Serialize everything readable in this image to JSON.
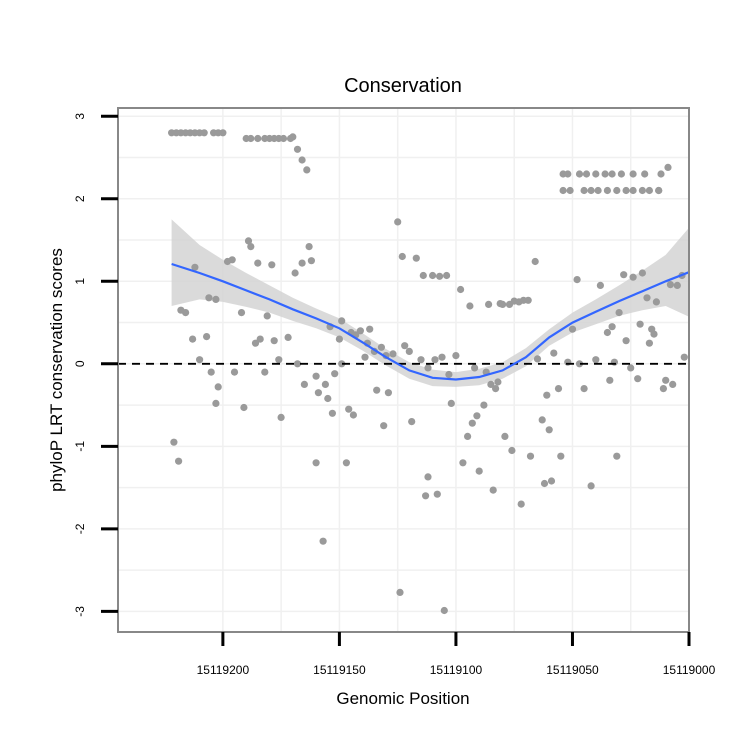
{
  "chart_data": {
    "type": "scatter",
    "title": "Conservation",
    "xlabel": "Genomic Position",
    "ylabel": "phyloP LRT conservation scores",
    "x_reversed": true,
    "xlim": [
      15119000,
      15119245
    ],
    "ylim": [
      -3.25,
      3.1
    ],
    "xticks": [
      15119200,
      15119150,
      15119100,
      15119050,
      15119000
    ],
    "yticks": [
      3,
      2,
      1,
      0,
      -1,
      -2,
      -3
    ],
    "reference_line": {
      "y": 0,
      "style": "dashed",
      "color": "#000000"
    },
    "point_color": "#9a9a9a",
    "smooth_color": "#3366ff",
    "band_color": "#d3d3d3",
    "grid": true,
    "background": "#ffffff",
    "panel_border": "#888888",
    "points": [
      [
        15119221,
        -0.95
      ],
      [
        15119219,
        -1.18
      ],
      [
        15119216,
        0.62
      ],
      [
        15119218,
        0.65
      ],
      [
        15119213,
        0.3
      ],
      [
        15119212,
        1.17
      ],
      [
        15119210,
        0.05
      ],
      [
        15119207,
        0.33
      ],
      [
        15119206,
        0.8
      ],
      [
        15119203,
        0.78
      ],
      [
        15119205,
        -0.1
      ],
      [
        15119203,
        -0.48
      ],
      [
        15119202,
        -0.28
      ],
      [
        15119198,
        1.24
      ],
      [
        15119196,
        1.26
      ],
      [
        15119195,
        -0.1
      ],
      [
        15119192,
        0.62
      ],
      [
        15119191,
        -0.53
      ],
      [
        15119189,
        1.49
      ],
      [
        15119188,
        1.42
      ],
      [
        15119186,
        0.25
      ],
      [
        15119185,
        1.22
      ],
      [
        15119184,
        0.3
      ],
      [
        15119182,
        -0.1
      ],
      [
        15119181,
        0.58
      ],
      [
        15119179,
        1.2
      ],
      [
        15119178,
        0.28
      ],
      [
        15119176,
        0.05
      ],
      [
        15119175,
        -0.65
      ],
      [
        15119172,
        0.32
      ],
      [
        15119169,
        1.1
      ],
      [
        15119168,
        0.0
      ],
      [
        15119165,
        -0.25
      ],
      [
        15119166,
        1.22
      ],
      [
        15119163,
        1.42
      ],
      [
        15119162,
        1.25
      ],
      [
        15119160,
        -1.2
      ],
      [
        15119160,
        -0.15
      ],
      [
        15119159,
        -0.35
      ],
      [
        15119157,
        -2.15
      ],
      [
        15119156,
        -0.25
      ],
      [
        15119155,
        -0.42
      ],
      [
        15119154,
        0.45
      ],
      [
        15119153,
        -0.6
      ],
      [
        15119152,
        -0.12
      ],
      [
        15119150,
        0.3
      ],
      [
        15119149,
        0.52
      ],
      [
        15119149,
        0.0
      ],
      [
        15119147,
        -1.2
      ],
      [
        15119146,
        -0.55
      ],
      [
        15119145,
        0.38
      ],
      [
        15119144,
        -0.62
      ],
      [
        15119143,
        0.35
      ],
      [
        15119141,
        0.4
      ],
      [
        15119139,
        0.08
      ],
      [
        15119138,
        0.25
      ],
      [
        15119137,
        0.42
      ],
      [
        15119135,
        0.15
      ],
      [
        15119134,
        -0.32
      ],
      [
        15119132,
        0.2
      ],
      [
        15119131,
        -0.75
      ],
      [
        15119130,
        0.1
      ],
      [
        15119129,
        -0.35
      ],
      [
        15119127,
        0.12
      ],
      [
        15119125,
        1.72
      ],
      [
        15119124,
        -2.77
      ],
      [
        15119123,
        1.3
      ],
      [
        15119122,
        0.22
      ],
      [
        15119120,
        0.15
      ],
      [
        15119119,
        -0.7
      ],
      [
        15119117,
        1.28
      ],
      [
        15119115,
        0.05
      ],
      [
        15119114,
        1.07
      ],
      [
        15119113,
        -1.6
      ],
      [
        15119112,
        -1.37
      ],
      [
        15119112,
        -0.05
      ],
      [
        15119110,
        1.07
      ],
      [
        15119109,
        0.05
      ],
      [
        15119108,
        -1.58
      ],
      [
        15119107,
        1.06
      ],
      [
        15119106,
        0.08
      ],
      [
        15119105,
        -2.99
      ],
      [
        15119104,
        1.07
      ],
      [
        15119103,
        -0.13
      ],
      [
        15119102,
        -0.48
      ],
      [
        15119100,
        0.1
      ],
      [
        15119098,
        0.9
      ],
      [
        15119097,
        -1.2
      ],
      [
        15119095,
        -0.88
      ],
      [
        15119094,
        0.7
      ],
      [
        15119093,
        -0.72
      ],
      [
        15119092,
        -0.05
      ],
      [
        15119091,
        -0.63
      ],
      [
        15119090,
        -1.3
      ],
      [
        15119088,
        -0.5
      ],
      [
        15119087,
        -0.1
      ],
      [
        15119086,
        0.72
      ],
      [
        15119085,
        -0.25
      ],
      [
        15119084,
        -1.53
      ],
      [
        15119083,
        -0.3
      ],
      [
        15119082,
        -0.22
      ],
      [
        15119081,
        0.73
      ],
      [
        15119080,
        0.72
      ],
      [
        15119079,
        -0.88
      ],
      [
        15119077,
        0.72
      ],
      [
        15119076,
        -1.05
      ],
      [
        15119075,
        0.76
      ],
      [
        15119073,
        0.75
      ],
      [
        15119072,
        -1.7
      ],
      [
        15119071,
        0.77
      ],
      [
        15119069,
        0.77
      ],
      [
        15119068,
        -1.12
      ],
      [
        15119066,
        1.24
      ],
      [
        15119065,
        0.06
      ],
      [
        15119063,
        -0.68
      ],
      [
        15119062,
        -1.45
      ],
      [
        15119061,
        -0.38
      ],
      [
        15119060,
        -0.8
      ],
      [
        15119059,
        -1.42
      ],
      [
        15119058,
        0.13
      ],
      [
        15119056,
        -0.3
      ],
      [
        15119055,
        -1.12
      ],
      [
        15119052,
        0.02
      ],
      [
        15119050,
        0.42
      ],
      [
        15119048,
        1.02
      ],
      [
        15119047,
        0.0
      ],
      [
        15119045,
        -0.3
      ],
      [
        15119042,
        -1.48
      ],
      [
        15119040,
        0.05
      ],
      [
        15119038,
        0.95
      ],
      [
        15119035,
        0.38
      ],
      [
        15119034,
        -0.2
      ],
      [
        15119033,
        0.45
      ],
      [
        15119032,
        0.02
      ],
      [
        15119031,
        -1.12
      ],
      [
        15119030,
        0.62
      ],
      [
        15119028,
        1.08
      ],
      [
        15119027,
        0.28
      ],
      [
        15119025,
        -0.05
      ],
      [
        15119024,
        1.05
      ],
      [
        15119022,
        -0.18
      ],
      [
        15119021,
        0.48
      ],
      [
        15119020,
        1.1
      ],
      [
        15119018,
        0.8
      ],
      [
        15119017,
        0.25
      ],
      [
        15119016,
        0.42
      ],
      [
        15119015,
        0.36
      ],
      [
        15119014,
        0.75
      ],
      [
        15119011,
        -0.3
      ],
      [
        15119010,
        -0.2
      ],
      [
        15119008,
        0.96
      ],
      [
        15119007,
        -0.25
      ],
      [
        15119005,
        0.95
      ],
      [
        15119003,
        1.07
      ],
      [
        15119002,
        0.08
      ],
      [
        15119012,
        2.3
      ],
      [
        15119009,
        2.38
      ],
      [
        15119013,
        2.1
      ]
    ],
    "repeated_points": [
      {
        "y": 2.8,
        "x": [
          15119222,
          15119220,
          15119218,
          15119216,
          15119214,
          15119212,
          15119210,
          15119208,
          15119204,
          15119202,
          15119200
        ]
      },
      {
        "y": 2.73,
        "x": [
          15119190,
          15119188,
          15119185,
          15119182,
          15119180,
          15119178,
          15119176,
          15119174,
          15119171
        ]
      },
      {
        "y": 2.3,
        "x": [
          15119054,
          15119052,
          15119047,
          15119044,
          15119040,
          15119036,
          15119033,
          15119029,
          15119024,
          15119019
        ]
      },
      {
        "y": 2.1,
        "x": [
          15119054,
          15119051,
          15119045,
          15119042,
          15119039,
          15119035,
          15119031,
          15119027,
          15119024,
          15119020,
          15119017,
          15119013
        ]
      }
    ],
    "extra_points": [
      [
        15119168,
        2.6
      ],
      [
        15119166,
        2.47
      ],
      [
        15119164,
        2.35
      ],
      [
        15119170,
        2.75
      ]
    ],
    "smooth": {
      "x": [
        15119222,
        15119210,
        15119200,
        15119190,
        15119180,
        15119170,
        15119160,
        15119150,
        15119140,
        15119130,
        15119120,
        15119110,
        15119100,
        15119090,
        15119080,
        15119070,
        15119060,
        15119050,
        15119040,
        15119030,
        15119020,
        15119010,
        15119000
      ],
      "y": [
        1.21,
        1.1,
        1.0,
        0.89,
        0.78,
        0.66,
        0.55,
        0.43,
        0.26,
        0.08,
        -0.08,
        -0.17,
        -0.19,
        -0.16,
        -0.08,
        0.08,
        0.32,
        0.5,
        0.63,
        0.76,
        0.88,
        1.0,
        1.11
      ],
      "lower": [
        0.7,
        0.78,
        0.75,
        0.69,
        0.62,
        0.52,
        0.43,
        0.32,
        0.16,
        -0.02,
        -0.18,
        -0.27,
        -0.28,
        -0.26,
        -0.18,
        -0.03,
        0.22,
        0.38,
        0.48,
        0.58,
        0.65,
        0.7,
        0.57
      ],
      "upper": [
        1.75,
        1.44,
        1.26,
        1.1,
        0.95,
        0.8,
        0.67,
        0.55,
        0.37,
        0.18,
        0.02,
        -0.07,
        -0.1,
        -0.06,
        0.02,
        0.19,
        0.42,
        0.62,
        0.78,
        0.95,
        1.13,
        1.32,
        1.65
      ]
    }
  }
}
